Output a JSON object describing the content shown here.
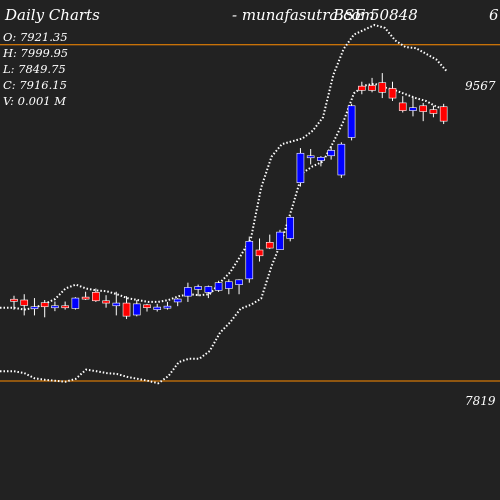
{
  "header": {
    "title": "Daily Charts",
    "source": "-  munafasutra.com",
    "symbol": "BSE 50848",
    "extra": "6"
  },
  "ohlc_panel": {
    "open": "O: 7921.35",
    "high": "H: 7999.95",
    "low": "L: 7849.75",
    "close": "C: 7916.15",
    "volume": "V: 0.001 M"
  },
  "levels": {
    "upper_label": "9567",
    "lower_label": "7819"
  },
  "colors": {
    "background": "#222222",
    "up": "#0000ff",
    "down": "#ff0000",
    "level_line": "#ff8c00",
    "bollinger": "#ffffff"
  },
  "chart_data": {
    "type": "candlestick",
    "price_range": [
      7200,
      9800
    ],
    "levels": [
      9567,
      7819
    ],
    "candles": [
      {
        "o": 8244,
        "h": 8262,
        "l": 8189,
        "c": 8233,
        "dir": "down"
      },
      {
        "o": 8240,
        "h": 8270,
        "l": 8160,
        "c": 8212,
        "dir": "down"
      },
      {
        "o": 8205,
        "h": 8250,
        "l": 8160,
        "c": 8195,
        "dir": "up"
      },
      {
        "o": 8205,
        "h": 8240,
        "l": 8150,
        "c": 8226,
        "dir": "down"
      },
      {
        "o": 8205,
        "h": 8232,
        "l": 8182,
        "c": 8210,
        "dir": "up"
      },
      {
        "o": 8210,
        "h": 8232,
        "l": 8190,
        "c": 8205,
        "dir": "down"
      },
      {
        "o": 8196,
        "h": 8255,
        "l": 8190,
        "c": 8250,
        "dir": "up"
      },
      {
        "o": 8250,
        "h": 8283,
        "l": 8240,
        "c": 8255,
        "dir": "down"
      },
      {
        "o": 8280,
        "h": 8300,
        "l": 8230,
        "c": 8236,
        "dir": "down"
      },
      {
        "o": 8236,
        "h": 8265,
        "l": 8200,
        "c": 8224,
        "dir": "down"
      },
      {
        "o": 8210,
        "h": 8283,
        "l": 8160,
        "c": 8224,
        "dir": "up"
      },
      {
        "o": 8224,
        "h": 8260,
        "l": 8141,
        "c": 8156,
        "dir": "down"
      },
      {
        "o": 8162,
        "h": 8240,
        "l": 8155,
        "c": 8220,
        "dir": "up"
      },
      {
        "o": 8215,
        "h": 8220,
        "l": 8180,
        "c": 8200,
        "dir": "down"
      },
      {
        "o": 8190,
        "h": 8220,
        "l": 8180,
        "c": 8203,
        "dir": "up"
      },
      {
        "o": 8203,
        "h": 8230,
        "l": 8190,
        "c": 8208,
        "dir": "up"
      },
      {
        "o": 8230,
        "h": 8250,
        "l": 8208,
        "c": 8245,
        "dir": "up"
      },
      {
        "o": 8260,
        "h": 8330,
        "l": 8230,
        "c": 8305,
        "dir": "up"
      },
      {
        "o": 8295,
        "h": 8320,
        "l": 8260,
        "c": 8310,
        "dir": "up"
      },
      {
        "o": 8280,
        "h": 8315,
        "l": 8250,
        "c": 8310,
        "dir": "up"
      },
      {
        "o": 8290,
        "h": 8340,
        "l": 8282,
        "c": 8330,
        "dir": "up"
      },
      {
        "o": 8300,
        "h": 8348,
        "l": 8270,
        "c": 8335,
        "dir": "up"
      },
      {
        "o": 8320,
        "h": 8348,
        "l": 8270,
        "c": 8345,
        "dir": "up"
      },
      {
        "o": 8350,
        "h": 8570,
        "l": 8330,
        "c": 8545,
        "dir": "up"
      },
      {
        "o": 8500,
        "h": 8560,
        "l": 8440,
        "c": 8470,
        "dir": "down"
      },
      {
        "o": 8540,
        "h": 8580,
        "l": 8505,
        "c": 8510,
        "dir": "down"
      },
      {
        "o": 8502,
        "h": 8605,
        "l": 8500,
        "c": 8593,
        "dir": "up"
      },
      {
        "o": 8560,
        "h": 8675,
        "l": 8545,
        "c": 8670,
        "dir": "up"
      },
      {
        "o": 8850,
        "h": 9030,
        "l": 8830,
        "c": 9003,
        "dir": "up"
      },
      {
        "o": 8985,
        "h": 9025,
        "l": 8945,
        "c": 8990,
        "dir": "up"
      },
      {
        "o": 8965,
        "h": 8988,
        "l": 8935,
        "c": 8982,
        "dir": "up"
      },
      {
        "o": 8990,
        "h": 9040,
        "l": 8970,
        "c": 9018,
        "dir": "up"
      },
      {
        "o": 8890,
        "h": 9060,
        "l": 8875,
        "c": 9050,
        "dir": "up"
      },
      {
        "o": 9085,
        "h": 9260,
        "l": 9070,
        "c": 9250,
        "dir": "up"
      },
      {
        "o": 9352,
        "h": 9375,
        "l": 9310,
        "c": 9330,
        "dir": "down"
      },
      {
        "o": 9355,
        "h": 9395,
        "l": 9320,
        "c": 9330,
        "dir": "down"
      },
      {
        "o": 9370,
        "h": 9420,
        "l": 9290,
        "c": 9320,
        "dir": "down"
      },
      {
        "o": 9340,
        "h": 9375,
        "l": 9275,
        "c": 9290,
        "dir": "down"
      },
      {
        "o": 9265,
        "h": 9300,
        "l": 9215,
        "c": 9225,
        "dir": "down"
      },
      {
        "o": 9225,
        "h": 9295,
        "l": 9195,
        "c": 9240,
        "dir": "up"
      },
      {
        "o": 9250,
        "h": 9265,
        "l": 9170,
        "c": 9220,
        "dir": "down"
      },
      {
        "o": 9230,
        "h": 9250,
        "l": 9190,
        "c": 9210,
        "dir": "down"
      },
      {
        "o": 9245,
        "h": 9260,
        "l": 9155,
        "c": 9170,
        "dir": "down"
      }
    ],
    "bollinger_upper": [
      8200,
      8190,
      8200,
      8220,
      8245,
      8300,
      8320,
      8300,
      8290,
      8285,
      8270,
      8250,
      8240,
      8230,
      8230,
      8240,
      8260,
      8270,
      8265,
      8270,
      8330,
      8385,
      8470,
      8560,
      8825,
      8985,
      9050,
      9065,
      9080,
      9120,
      9190,
      9410,
      9545,
      9620,
      9645,
      9670,
      9655,
      9590,
      9555,
      9550,
      9520,
      9490,
      9430
    ],
    "bollinger_lower": [
      7870,
      7860,
      7833,
      7825,
      7820,
      7815,
      7830,
      7878,
      7870,
      7860,
      7855,
      7840,
      7830,
      7820,
      7807,
      7845,
      7917,
      7935,
      7935,
      7975,
      8070,
      8125,
      8195,
      8215,
      8248,
      8415,
      8550,
      8720,
      8900,
      8935,
      8960,
      9060,
      9170,
      9315,
      9355,
      9365,
      9345,
      9330,
      9310,
      9290,
      9275,
      9245,
      9230
    ]
  }
}
